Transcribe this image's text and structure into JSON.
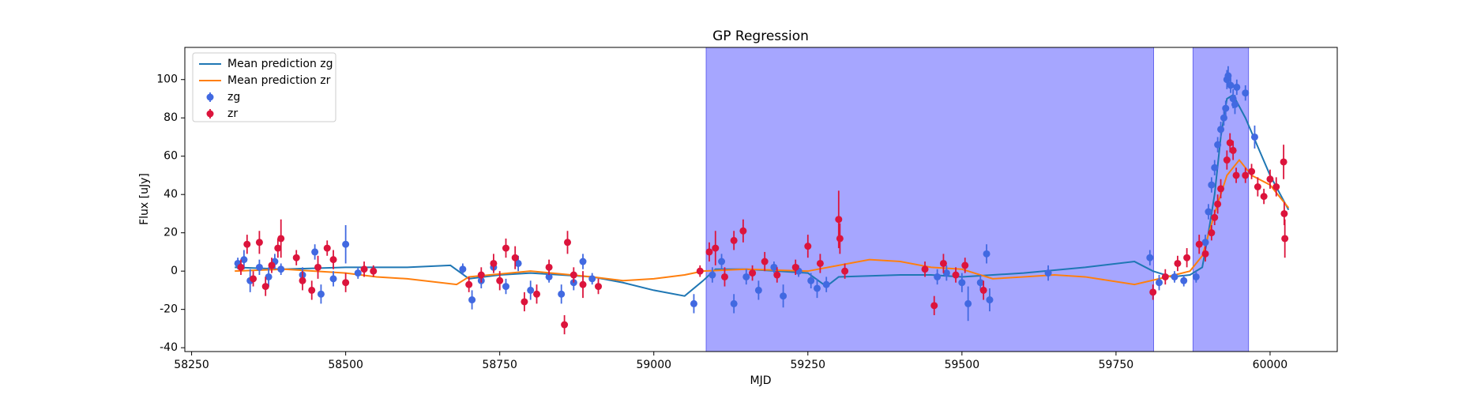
{
  "chart_data": {
    "type": "errorbar",
    "title": "GP Regression",
    "x_label": "MJD",
    "y_label": "Flux [uJy]",
    "xlim": [
      58239,
      60109
    ],
    "ylim": [
      -42,
      116.8
    ],
    "xticks": [
      58250,
      58500,
      58750,
      59000,
      59250,
      59500,
      59750,
      60000
    ],
    "yticks": [
      -40,
      -20,
      0,
      20,
      40,
      60,
      80,
      100
    ],
    "legend": "upper left",
    "spans": [
      [
        59085,
        59811
      ],
      [
        59875,
        59965
      ]
    ],
    "span_color": "#a6a6ff",
    "series": [
      {
        "name": "Mean prediction zg",
        "kind": "line",
        "color": "#1f77b4",
        "x": [
          58320,
          58400,
          58500,
          58600,
          58670,
          58700,
          58750,
          58800,
          58850,
          58900,
          58950,
          59000,
          59050,
          59080,
          59100,
          59150,
          59200,
          59250,
          59280,
          59300,
          59400,
          59450,
          59500,
          59550,
          59600,
          59700,
          59780,
          59810,
          59840,
          59870,
          59890,
          59900,
          59910,
          59920,
          59930,
          59940,
          59960,
          59980,
          60000,
          60030
        ],
        "values": [
          2,
          1,
          2,
          2,
          3,
          -4,
          -2,
          -1,
          -2,
          -3,
          -6,
          -10,
          -13,
          -5,
          1,
          1,
          0,
          -1,
          -8,
          -3,
          -2,
          -2,
          -3,
          -2,
          -1,
          2,
          5,
          0,
          -3,
          -2,
          2,
          20,
          40,
          70,
          90,
          92,
          80,
          65,
          50,
          32
        ]
      },
      {
        "name": "Mean prediction zr",
        "kind": "line",
        "color": "#ff7f0e",
        "x": [
          58320,
          58400,
          58500,
          58550,
          58600,
          58680,
          58700,
          58800,
          58900,
          58950,
          59000,
          59050,
          59080,
          59150,
          59250,
          59300,
          59350,
          59400,
          59450,
          59500,
          59550,
          59600,
          59650,
          59700,
          59780,
          59820,
          59870,
          59890,
          59910,
          59930,
          59950,
          59970,
          60000,
          60030
        ],
        "values": [
          0,
          1,
          -1,
          -3,
          -4,
          -7,
          -3,
          0,
          -3,
          -5,
          -4,
          -2,
          0,
          1,
          0,
          3,
          6,
          5,
          2,
          1,
          -4,
          -3,
          -2,
          -3,
          -7,
          -4,
          0,
          8,
          30,
          50,
          58,
          50,
          45,
          33
        ]
      },
      {
        "name": "zg",
        "kind": "errorbar",
        "color": "#4169e1",
        "x": [
          58325,
          58335,
          58345,
          58360,
          58375,
          58385,
          58395,
          58430,
          58450,
          58460,
          58480,
          58500,
          58520,
          58690,
          58705,
          58720,
          58740,
          58760,
          58780,
          58800,
          58830,
          58850,
          58870,
          58885,
          58900,
          59065,
          59095,
          59110,
          59130,
          59150,
          59170,
          59195,
          59210,
          59235,
          59255,
          59265,
          59280,
          59460,
          59475,
          59500,
          59510,
          59530,
          59540,
          59545,
          59640,
          59805,
          59820,
          59845,
          59860,
          59880,
          59895,
          59900,
          59905,
          59910,
          59915,
          59920,
          59925,
          59928,
          59930,
          59932,
          59936,
          59940,
          59943,
          59946,
          59960,
          59975
        ],
        "values": [
          4,
          6,
          -5,
          2,
          -3,
          5,
          1,
          -2,
          10,
          -12,
          -4,
          14,
          -1,
          1,
          -15,
          -5,
          2,
          -8,
          4,
          -10,
          -3,
          -12,
          -6,
          5,
          -4,
          -17,
          -2,
          5,
          -17,
          -3,
          -10,
          2,
          -13,
          0,
          -5,
          -9,
          -7,
          -3,
          -1,
          -6,
          -17,
          -6,
          9,
          -15,
          -1,
          7,
          -6,
          -3,
          -5,
          -3,
          15,
          31,
          45,
          54,
          66,
          74,
          80,
          85,
          100,
          102,
          97,
          90,
          87,
          96,
          93,
          70
        ],
        "errors": [
          3,
          5,
          6,
          4,
          5,
          4,
          3,
          4,
          4,
          5,
          4,
          10,
          3,
          3,
          5,
          4,
          3,
          4,
          4,
          5,
          3,
          5,
          4,
          4,
          3,
          5,
          4,
          4,
          5,
          4,
          5,
          3,
          6,
          3,
          4,
          5,
          4,
          4,
          4,
          5,
          9,
          4,
          5,
          6,
          4,
          4,
          4,
          3,
          3,
          3,
          4,
          4,
          4,
          4,
          4,
          4,
          4,
          4,
          5,
          5,
          4,
          5,
          5,
          4,
          4,
          6
        ]
      },
      {
        "name": "zr",
        "kind": "errorbar",
        "color": "#dc143c",
        "x": [
          58330,
          58340,
          58350,
          58360,
          58370,
          58380,
          58390,
          58395,
          58420,
          58430,
          58445,
          58455,
          58470,
          58480,
          58500,
          58530,
          58545,
          58700,
          58720,
          58740,
          58750,
          58760,
          58775,
          58790,
          58810,
          58830,
          58855,
          58860,
          58870,
          58885,
          58910,
          59075,
          59090,
          59100,
          59115,
          59130,
          59145,
          59160,
          59180,
          59200,
          59230,
          59250,
          59270,
          59300,
          59302,
          59310,
          59440,
          59455,
          59470,
          59490,
          59505,
          59535,
          59810,
          59830,
          59850,
          59865,
          59885,
          59895,
          59905,
          59910,
          59915,
          59920,
          59930,
          59935,
          59940,
          59945,
          59960,
          59970,
          59980,
          59990,
          60000,
          60010,
          60022,
          60023,
          60024
        ],
        "values": [
          2,
          14,
          -4,
          15,
          -8,
          3,
          12,
          17,
          7,
          -5,
          -10,
          2,
          12,
          6,
          -6,
          1,
          0,
          -7,
          -2,
          4,
          -5,
          12,
          7,
          -16,
          -12,
          2,
          -28,
          15,
          -2,
          -7,
          -8,
          0,
          10,
          12,
          -3,
          16,
          21,
          -1,
          5,
          -2,
          2,
          13,
          4,
          27,
          17,
          0,
          1,
          -18,
          4,
          -2,
          3,
          -10,
          -11,
          -3,
          4,
          7,
          14,
          9,
          20,
          28,
          35,
          43,
          58,
          67,
          63,
          50,
          50,
          52,
          44,
          39,
          48,
          44,
          57,
          30,
          17
        ],
        "errors": [
          4,
          5,
          4,
          6,
          5,
          4,
          5,
          10,
          4,
          5,
          5,
          6,
          4,
          5,
          5,
          4,
          3,
          4,
          4,
          5,
          5,
          5,
          6,
          5,
          5,
          4,
          5,
          6,
          4,
          7,
          4,
          3,
          5,
          9,
          5,
          5,
          6,
          4,
          5,
          4,
          4,
          6,
          5,
          15,
          8,
          4,
          4,
          5,
          5,
          4,
          4,
          5,
          4,
          4,
          4,
          5,
          5,
          4,
          4,
          4,
          5,
          5,
          5,
          5,
          5,
          4,
          4,
          4,
          5,
          4,
          5,
          5,
          9,
          6,
          10
        ]
      }
    ]
  }
}
